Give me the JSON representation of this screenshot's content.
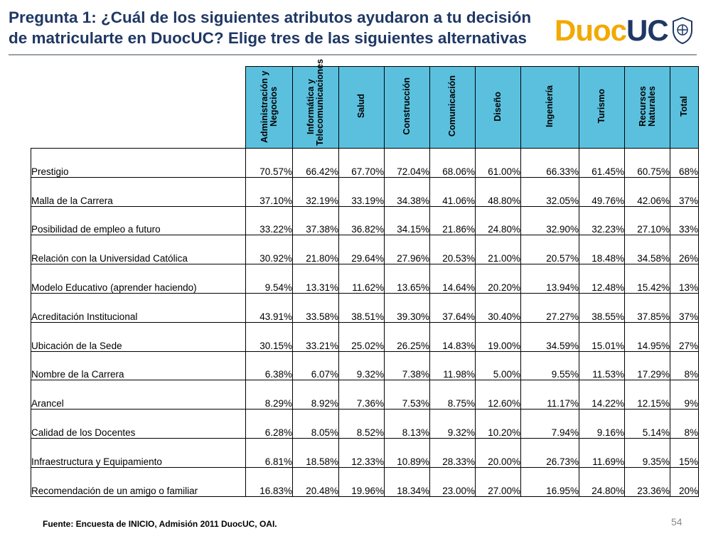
{
  "header": {
    "title": "Pregunta 1: ¿Cuál de los siguientes atributos ayudaron a tu decisión de matricularte en DuocUC? Elige tres de las siguientes alternativas",
    "logo_part1": "Duoc",
    "logo_part2": "UC"
  },
  "colors": {
    "title": "#1f3864",
    "header_fill": "#5bc0de",
    "logo_gold": "#f2a900",
    "logo_navy": "#1f3864"
  },
  "table": {
    "columns": [
      "Administración y Negocios",
      "Informática y Telecomunicaciones",
      "Salud",
      "Construcción",
      "Comunicación",
      "Diseño",
      "Ingeniería",
      "Turismo",
      "Recursos Naturales",
      "Total"
    ],
    "rows": [
      {
        "label": "Prestigio",
        "values": [
          "70.57%",
          "66.42%",
          "67.70%",
          "72.04%",
          "68.06%",
          "61.00%",
          "66.33%",
          "61.45%",
          "60.75%",
          "68%"
        ]
      },
      {
        "label": "Malla de la Carrera",
        "values": [
          "37.10%",
          "32.19%",
          "33.19%",
          "34.38%",
          "41.06%",
          "48.80%",
          "32.05%",
          "49.76%",
          "42.06%",
          "37%"
        ]
      },
      {
        "label": "Posibilidad de empleo a futuro",
        "values": [
          "33.22%",
          "37.38%",
          "36.82%",
          "34.15%",
          "21.86%",
          "24.80%",
          "32.90%",
          "32.23%",
          "27.10%",
          "33%"
        ]
      },
      {
        "label": "Relación con la Universidad Católica",
        "values": [
          "30.92%",
          "21.80%",
          "29.64%",
          "27.96%",
          "20.53%",
          "21.00%",
          "20.57%",
          "18.48%",
          "34.58%",
          "26%"
        ]
      },
      {
        "label": "Modelo Educativo (aprender haciendo)",
        "values": [
          "9.54%",
          "13.31%",
          "11.62%",
          "13.65%",
          "14.64%",
          "20.20%",
          "13.94%",
          "12.48%",
          "15.42%",
          "13%"
        ]
      },
      {
        "label": "Acreditación Institucional",
        "values": [
          "43.91%",
          "33.58%",
          "38.51%",
          "39.30%",
          "37.64%",
          "30.40%",
          "27.27%",
          "38.55%",
          "37.85%",
          "37%"
        ]
      },
      {
        "label": "Ubicación de la Sede",
        "values": [
          "30.15%",
          "33.21%",
          "25.02%",
          "26.25%",
          "14.83%",
          "19.00%",
          "34.59%",
          "15.01%",
          "14.95%",
          "27%"
        ]
      },
      {
        "label": "Nombre de la Carrera",
        "values": [
          "6.38%",
          "6.07%",
          "9.32%",
          "7.38%",
          "11.98%",
          "5.00%",
          "9.55%",
          "11.53%",
          "17.29%",
          "8%"
        ]
      },
      {
        "label": "Arancel",
        "values": [
          "8.29%",
          "8.92%",
          "7.36%",
          "7.53%",
          "8.75%",
          "12.60%",
          "11.17%",
          "14.22%",
          "12.15%",
          "9%"
        ]
      },
      {
        "label": "Calidad de los Docentes",
        "values": [
          "6.28%",
          "8.05%",
          "8.52%",
          "8.13%",
          "9.32%",
          "10.20%",
          "7.94%",
          "9.16%",
          "5.14%",
          "8%"
        ]
      },
      {
        "label": "Infraestructura y Equipamiento",
        "values": [
          "6.81%",
          "18.58%",
          "12.33%",
          "10.89%",
          "28.33%",
          "20.00%",
          "26.73%",
          "11.69%",
          "9.35%",
          "15%"
        ]
      },
      {
        "label": "Recomendación de un amigo o familiar",
        "values": [
          "16.83%",
          "20.48%",
          "19.96%",
          "18.34%",
          "23.00%",
          "27.00%",
          "16.95%",
          "24.80%",
          "23.36%",
          "20%"
        ]
      }
    ]
  },
  "footer": {
    "source": "Fuente: Encuesta de INICIO, Admisión 2011 DuocUC, OAI.",
    "page_number": "54"
  },
  "icons": {
    "seal": "university-seal-icon"
  }
}
